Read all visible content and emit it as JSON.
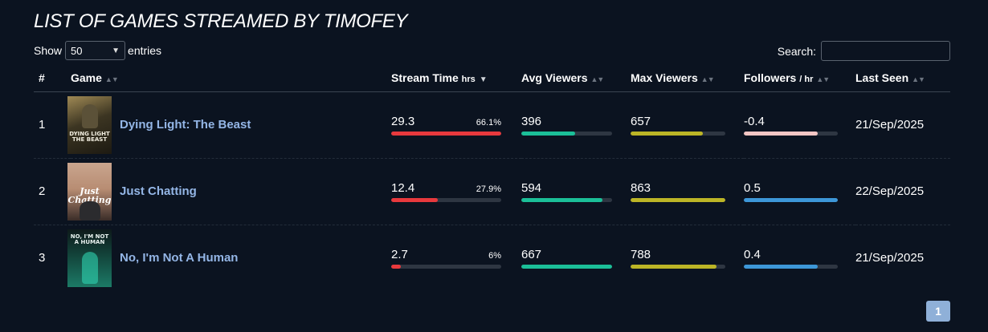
{
  "title": "LIST OF GAMES STREAMED BY TIMOFEY",
  "length_control": {
    "show_label": "Show",
    "selected": "50",
    "entries_label": "entries"
  },
  "search": {
    "label": "Search:",
    "value": "",
    "placeholder": ""
  },
  "columns": {
    "rank": "#",
    "game": "Game",
    "stream_time": "Stream Time",
    "stream_time_unit": "hrs",
    "avg_viewers": "Avg Viewers",
    "max_viewers": "Max Viewers",
    "followers": "Followers",
    "followers_unit": "/ hr",
    "last_seen": "Last Seen"
  },
  "rows": [
    {
      "rank": "1",
      "game": "Dying Light: The Beast",
      "box_art_text": "DYING LIGHT THE BEAST",
      "stream_time": "29.3",
      "stream_pct": "66.1%",
      "stream_fill": 1.0,
      "avg_viewers": "396",
      "avg_fill": 0.59,
      "max_viewers": "657",
      "max_fill": 0.76,
      "followers": "-0.4",
      "followers_fill": 0.79,
      "followers_color": "#f4c6c4",
      "last_seen": "21/Sep/2025"
    },
    {
      "rank": "2",
      "game": "Just Chatting",
      "box_art_text": "Just Chatting",
      "stream_time": "12.4",
      "stream_pct": "27.9%",
      "stream_fill": 0.42,
      "avg_viewers": "594",
      "avg_fill": 0.89,
      "max_viewers": "863",
      "max_fill": 1.0,
      "followers": "0.5",
      "followers_fill": 1.0,
      "followers_color": "#3d97d8",
      "last_seen": "22/Sep/2025"
    },
    {
      "rank": "3",
      "game": "No, I'm Not A Human",
      "box_art_text": "NO, I'M NOT A HUMAN",
      "stream_time": "2.7",
      "stream_pct": "6%",
      "stream_fill": 0.09,
      "avg_viewers": "667",
      "avg_fill": 1.0,
      "max_viewers": "788",
      "max_fill": 0.91,
      "followers": "0.4",
      "followers_fill": 0.79,
      "followers_color": "#3d97d8",
      "last_seen": "21/Sep/2025"
    }
  ],
  "pagination": {
    "current_page": "1"
  },
  "colors": {
    "stream_bar": "#e8393d",
    "avg_bar": "#1bbf98",
    "max_bar": "#bcb526",
    "link": "#94b6e6",
    "background": "#0b1320"
  }
}
